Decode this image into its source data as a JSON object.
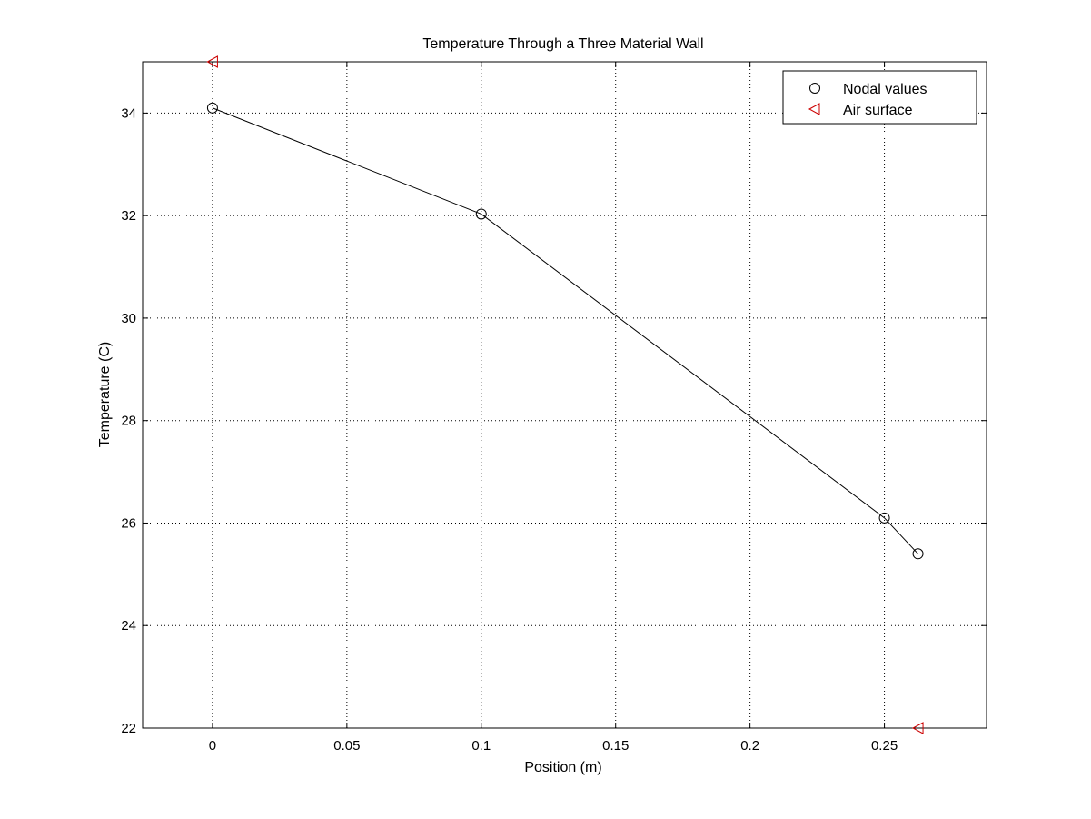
{
  "chart_data": {
    "type": "line",
    "title": "Temperature Through a Three Material Wall",
    "xlabel": "Position (m)",
    "ylabel": "Temperature (C)",
    "xlim": [
      -0.026,
      0.288
    ],
    "ylim": [
      22,
      35
    ],
    "x_ticks": [
      0,
      0.05,
      0.1,
      0.15,
      0.2,
      0.25
    ],
    "x_tick_labels": [
      "0",
      "0.05",
      "0.1",
      "0.15",
      "0.2",
      "0.25"
    ],
    "y_ticks": [
      22,
      24,
      26,
      28,
      30,
      32,
      34
    ],
    "y_tick_labels": [
      "22",
      "24",
      "26",
      "28",
      "30",
      "32",
      "34"
    ],
    "grid": true,
    "legend_position": "top-right",
    "series": [
      {
        "name": "Nodal values",
        "marker": "circle",
        "color": "#000000",
        "line": true,
        "x": [
          0,
          0.1,
          0.25,
          0.2625
        ],
        "y": [
          34.1,
          32.03,
          26.1,
          25.4
        ]
      },
      {
        "name": "Air surface",
        "marker": "triangle-left",
        "color": "#cc0000",
        "line": false,
        "x": [
          0,
          0.2625
        ],
        "y": [
          35,
          22
        ]
      }
    ]
  }
}
